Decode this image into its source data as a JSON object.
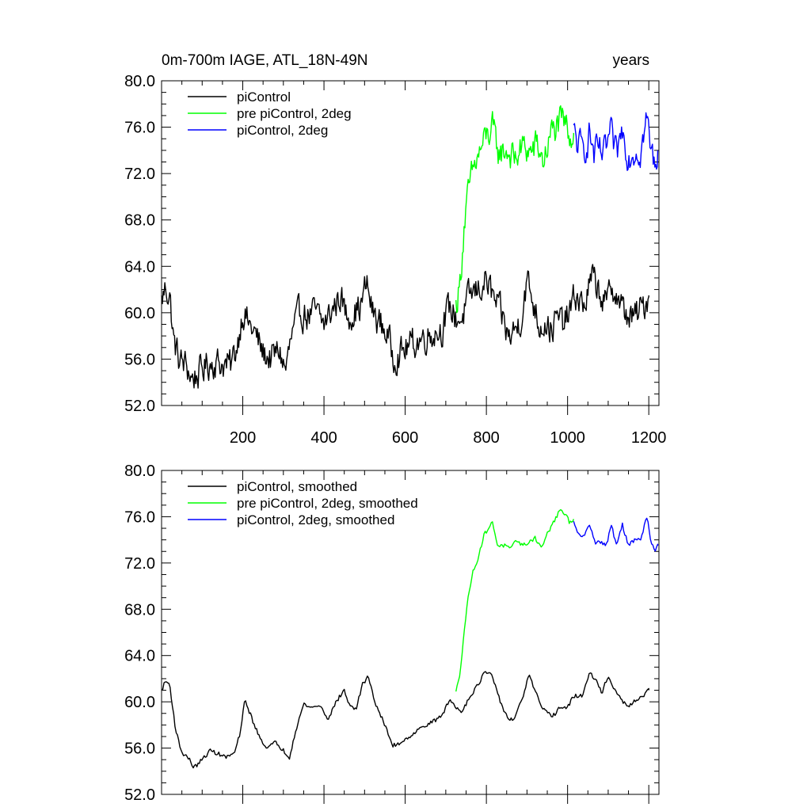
{
  "chart_data": [
    {
      "type": "line",
      "title_left": "0m-700m IAGE, ATL_18N-49N",
      "title_right": "years",
      "xlim": [
        0,
        1225
      ],
      "ylim": [
        52,
        80
      ],
      "yticks": [
        "52.0",
        "56.0",
        "60.0",
        "64.0",
        "68.0",
        "72.0",
        "76.0",
        "80.0"
      ],
      "xticks": [
        "200",
        "400",
        "600",
        "800",
        "1000",
        "1200"
      ],
      "xtick_values": [
        200,
        400,
        600,
        800,
        1000,
        1200
      ],
      "show_xtick_labels": true,
      "legend": "top-left",
      "series": [
        {
          "name": "piControl",
          "color": "#000000",
          "points": [
            [
              0,
              61.0
            ],
            [
              10,
              62.2
            ],
            [
              20,
              61.5
            ],
            [
              30,
              57.5
            ],
            [
              45,
              55.8
            ],
            [
              60,
              55.5
            ],
            [
              75,
              54.3
            ],
            [
              90,
              54.7
            ],
            [
              110,
              55.5
            ],
            [
              130,
              55.8
            ],
            [
              150,
              55.6
            ],
            [
              170,
              55.4
            ],
            [
              185,
              57.0
            ],
            [
              200,
              60.2
            ],
            [
              215,
              59.0
            ],
            [
              230,
              58.2
            ],
            [
              250,
              56.5
            ],
            [
              270,
              56.0
            ],
            [
              290,
              56.8
            ],
            [
              305,
              55.0
            ],
            [
              320,
              57.8
            ],
            [
              340,
              60.0
            ],
            [
              360,
              59.8
            ],
            [
              380,
              60.0
            ],
            [
              400,
              59.0
            ],
            [
              420,
              60.2
            ],
            [
              440,
              61.5
            ],
            [
              455,
              59.8
            ],
            [
              470,
              60.0
            ],
            [
              490,
              60.5
            ],
            [
              505,
              62.5
            ],
            [
              520,
              60.0
            ],
            [
              540,
              59.0
            ],
            [
              555,
              58.2
            ],
            [
              570,
              56.3
            ],
            [
              590,
              56.5
            ],
            [
              610,
              57.2
            ],
            [
              630,
              57.5
            ],
            [
              650,
              58.0
            ],
            [
              670,
              58.3
            ],
            [
              690,
              58.6
            ],
            [
              710,
              60.5
            ],
            [
              725,
              59.5
            ],
            [
              740,
              59.5
            ],
            [
              760,
              61.5
            ],
            [
              780,
              62.0
            ],
            [
              800,
              62.8
            ],
            [
              820,
              61.0
            ],
            [
              840,
              59.5
            ],
            [
              855,
              57.8
            ],
            [
              870,
              58.5
            ],
            [
              885,
              59.5
            ],
            [
              900,
              62.8
            ],
            [
              915,
              61.0
            ],
            [
              930,
              59.0
            ],
            [
              945,
              59.2
            ],
            [
              960,
              58.5
            ],
            [
              975,
              59.5
            ],
            [
              990,
              59.0
            ],
            [
              1005,
              60.0
            ],
            [
              1020,
              61.5
            ],
            [
              1040,
              60.5
            ],
            [
              1060,
              63.0
            ],
            [
              1080,
              61.8
            ],
            [
              1095,
              60.5
            ],
            [
              1110,
              62.5
            ],
            [
              1125,
              61.0
            ],
            [
              1140,
              60.0
            ],
            [
              1160,
              59.5
            ],
            [
              1175,
              60.0
            ],
            [
              1190,
              60.8
            ],
            [
              1200,
              61.5
            ]
          ]
        },
        {
          "name": "pre piControl, 2deg",
          "color": "#00ff00",
          "points": [
            [
              725,
              60.5
            ],
            [
              735,
              62.5
            ],
            [
              745,
              67.5
            ],
            [
              755,
              70.0
            ],
            [
              765,
              72.0
            ],
            [
              780,
              73.5
            ],
            [
              800,
              75.2
            ],
            [
              815,
              75.8
            ],
            [
              830,
              73.8
            ],
            [
              850,
              74.0
            ],
            [
              870,
              73.2
            ],
            [
              890,
              74.3
            ],
            [
              910,
              73.8
            ],
            [
              925,
              74.5
            ],
            [
              940,
              73.0
            ],
            [
              960,
              75.5
            ],
            [
              975,
              76.0
            ],
            [
              990,
              76.5
            ],
            [
              1005,
              75.5
            ],
            [
              1015,
              75.5
            ]
          ]
        },
        {
          "name": "piControl, 2deg",
          "color": "#0000ff",
          "points": [
            [
              1015,
              75.5
            ],
            [
              1025,
              74.5
            ],
            [
              1040,
              74.0
            ],
            [
              1055,
              75.5
            ],
            [
              1065,
              73.5
            ],
            [
              1075,
              74.0
            ],
            [
              1090,
              73.5
            ],
            [
              1105,
              75.5
            ],
            [
              1120,
              73.5
            ],
            [
              1135,
              75.8
            ],
            [
              1150,
              73.5
            ],
            [
              1165,
              74.0
            ],
            [
              1180,
              74.0
            ],
            [
              1195,
              76.8
            ],
            [
              1205,
              74.0
            ],
            [
              1215,
              72.8
            ],
            [
              1222,
              74.0
            ]
          ]
        }
      ]
    },
    {
      "type": "line",
      "title_left": "",
      "title_right": "",
      "xlim": [
        0,
        1225
      ],
      "ylim": [
        52,
        80
      ],
      "yticks": [
        "52.0",
        "56.0",
        "60.0",
        "64.0",
        "68.0",
        "72.0",
        "76.0",
        "80.0"
      ],
      "xticks": [
        "200",
        "400",
        "600",
        "800",
        "1000",
        "1200"
      ],
      "xtick_values": [
        200,
        400,
        600,
        800,
        1000,
        1200
      ],
      "show_xtick_labels": false,
      "legend": "top-left",
      "series": [
        {
          "name": "piControl, smoothed",
          "color": "#000000",
          "points": [
            [
              0,
              61.0
            ],
            [
              10,
              61.8
            ],
            [
              20,
              61.5
            ],
            [
              35,
              57.5
            ],
            [
              50,
              55.6
            ],
            [
              65,
              55.2
            ],
            [
              80,
              54.3
            ],
            [
              100,
              55.0
            ],
            [
              120,
              55.8
            ],
            [
              140,
              55.5
            ],
            [
              160,
              55.2
            ],
            [
              180,
              55.6
            ],
            [
              195,
              57.5
            ],
            [
              205,
              60.2
            ],
            [
              220,
              58.8
            ],
            [
              240,
              57.0
            ],
            [
              260,
              56.0
            ],
            [
              280,
              56.5
            ],
            [
              300,
              55.8
            ],
            [
              315,
              55.2
            ],
            [
              330,
              57.5
            ],
            [
              350,
              59.8
            ],
            [
              370,
              59.5
            ],
            [
              390,
              59.7
            ],
            [
              410,
              58.5
            ],
            [
              430,
              60.0
            ],
            [
              450,
              61.0
            ],
            [
              465,
              59.5
            ],
            [
              480,
              59.5
            ],
            [
              495,
              61.5
            ],
            [
              510,
              62.2
            ],
            [
              525,
              60.0
            ],
            [
              540,
              58.8
            ],
            [
              555,
              57.5
            ],
            [
              570,
              56.2
            ],
            [
              590,
              56.5
            ],
            [
              610,
              57.0
            ],
            [
              630,
              57.5
            ],
            [
              650,
              58.0
            ],
            [
              670,
              58.3
            ],
            [
              690,
              58.8
            ],
            [
              710,
              60.2
            ],
            [
              725,
              59.5
            ],
            [
              740,
              59.2
            ],
            [
              760,
              60.5
            ],
            [
              780,
              61.5
            ],
            [
              795,
              62.5
            ],
            [
              810,
              62.5
            ],
            [
              825,
              61.0
            ],
            [
              840,
              59.5
            ],
            [
              855,
              58.5
            ],
            [
              870,
              58.5
            ],
            [
              890,
              60.5
            ],
            [
              905,
              62.3
            ],
            [
              920,
              61.0
            ],
            [
              935,
              59.5
            ],
            [
              950,
              59.0
            ],
            [
              965,
              58.8
            ],
            [
              980,
              59.5
            ],
            [
              1000,
              59.5
            ],
            [
              1015,
              60.5
            ],
            [
              1035,
              60.5
            ],
            [
              1055,
              62.5
            ],
            [
              1070,
              61.8
            ],
            [
              1085,
              60.8
            ],
            [
              1100,
              62.3
            ],
            [
              1115,
              61.0
            ],
            [
              1130,
              60.3
            ],
            [
              1150,
              59.5
            ],
            [
              1170,
              60.2
            ],
            [
              1185,
              60.5
            ],
            [
              1200,
              61.0
            ]
          ]
        },
        {
          "name": "pre piControl, 2deg, smoothed",
          "color": "#00ff00",
          "points": [
            [
              725,
              60.8
            ],
            [
              735,
              62.5
            ],
            [
              745,
              66.0
            ],
            [
              755,
              69.0
            ],
            [
              765,
              71.0
            ],
            [
              780,
              72.5
            ],
            [
              795,
              74.5
            ],
            [
              805,
              75.0
            ],
            [
              815,
              75.5
            ],
            [
              828,
              73.5
            ],
            [
              845,
              73.5
            ],
            [
              860,
              73.2
            ],
            [
              875,
              74.0
            ],
            [
              890,
              73.5
            ],
            [
              905,
              73.8
            ],
            [
              920,
              74.2
            ],
            [
              935,
              73.3
            ],
            [
              950,
              74.5
            ],
            [
              965,
              75.5
            ],
            [
              980,
              76.5
            ],
            [
              995,
              76.2
            ],
            [
              1005,
              75.5
            ],
            [
              1015,
              75.8
            ]
          ]
        },
        {
          "name": "piControl, 2deg, smoothed",
          "color": "#0000ff",
          "points": [
            [
              1015,
              75.5
            ],
            [
              1025,
              74.5
            ],
            [
              1040,
              74.3
            ],
            [
              1055,
              75.3
            ],
            [
              1068,
              73.8
            ],
            [
              1080,
              73.8
            ],
            [
              1095,
              73.5
            ],
            [
              1108,
              75.3
            ],
            [
              1120,
              73.5
            ],
            [
              1135,
              75.3
            ],
            [
              1150,
              73.5
            ],
            [
              1165,
              74.0
            ],
            [
              1180,
              74.0
            ],
            [
              1195,
              76.0
            ],
            [
              1205,
              74.0
            ],
            [
              1215,
              73.0
            ],
            [
              1222,
              73.5
            ]
          ]
        }
      ]
    }
  ]
}
